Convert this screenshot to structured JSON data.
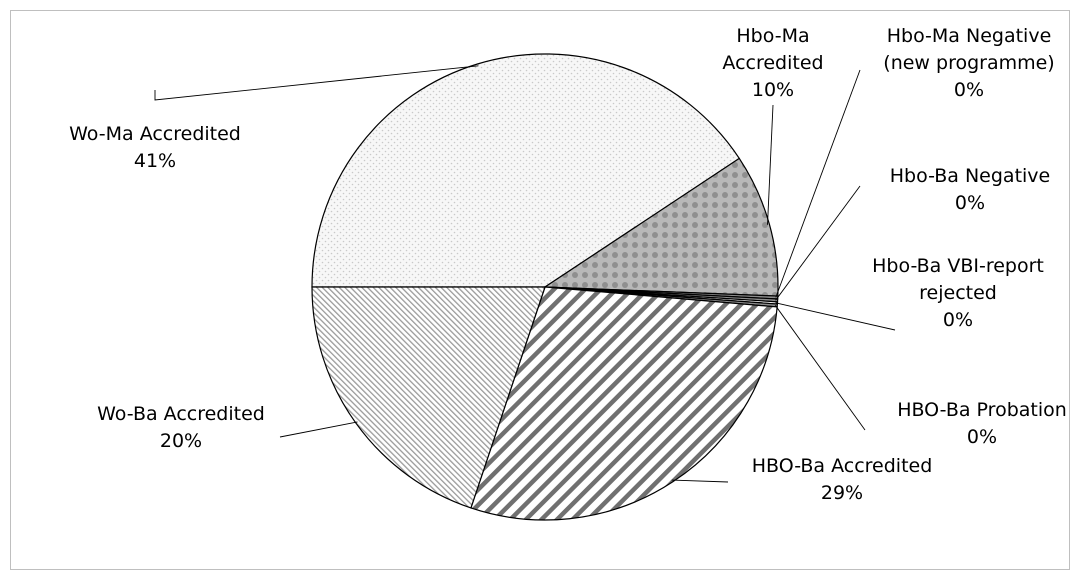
{
  "chart_data": {
    "type": "pie",
    "title": "",
    "start_angle_deg": 180,
    "direction": "clockwise",
    "slices": [
      {
        "label_lines": [
          "Wo-Ma Accredited"
        ],
        "pct_label": "41%",
        "value": 41,
        "pattern": "fine-dots"
      },
      {
        "label_lines": [
          "Hbo-Ma",
          "Accredited"
        ],
        "pct_label": "10%",
        "value": 10,
        "pattern": "big-dots"
      },
      {
        "label_lines": [
          "Hbo-Ma Negative",
          "(new programme)"
        ],
        "pct_label": "0%",
        "value": 0.2,
        "pattern": "solid-gray"
      },
      {
        "label_lines": [
          "Hbo-Ba Negative"
        ],
        "pct_label": "0%",
        "value": 0.2,
        "pattern": "solid-gray"
      },
      {
        "label_lines": [
          "Hbo-Ba VBI-report",
          "rejected"
        ],
        "pct_label": "0%",
        "value": 0.15,
        "pattern": "solid-white"
      },
      {
        "label_lines": [
          "HBO-Ba Probation"
        ],
        "pct_label": "0%",
        "value": 0.2,
        "pattern": "solid-gray"
      },
      {
        "label_lines": [
          "HBO-Ba Accredited"
        ],
        "pct_label": "29%",
        "value": 29,
        "pattern": "wide-diagonal"
      },
      {
        "label_lines": [
          "Wo-Ba Accredited"
        ],
        "pct_label": "20%",
        "value": 20,
        "pattern": "fine-diagonal"
      }
    ]
  }
}
